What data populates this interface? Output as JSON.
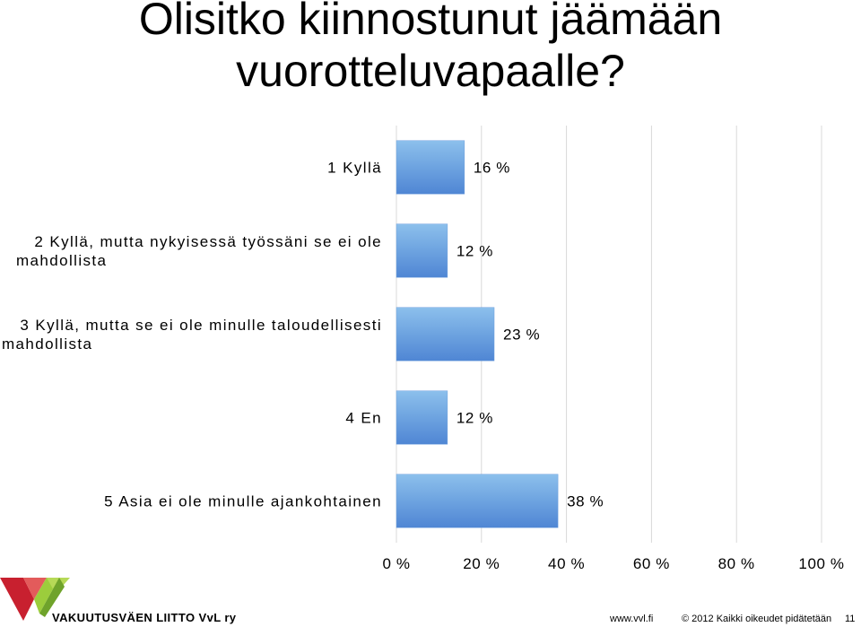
{
  "slide": {
    "title": "Olisitko kiinnostunut jäämään vuorotteluvapaalle?",
    "brand": "VAKUUTUSVÄEN LIITTO VvL ry",
    "footer_url": "www.vvl.fi",
    "footer_copyright": "© 2012 Kaikki oikeudet pidätetään",
    "page_number": "11"
  },
  "chart_data": {
    "type": "bar",
    "orientation": "horizontal",
    "categories": [
      [
        "1 Kyllä"
      ],
      [
        "2 Kyllä, mutta nykyisessä työssäni se ei ole",
        "mahdollista"
      ],
      [
        "3 Kyllä, mutta se ei ole minulle taloudellisesti",
        "mahdollista"
      ],
      [
        "4 En"
      ],
      [
        "5 Asia ei ole minulle ajankohtainen"
      ]
    ],
    "values": [
      16,
      12,
      23,
      12,
      38
    ],
    "value_labels": [
      "16 %",
      "12 %",
      "23 %",
      "12 %",
      "38 %"
    ],
    "xlim": [
      0,
      100
    ],
    "x_ticks": [
      "0 %",
      "20 %",
      "40 %",
      "60 %",
      "80 %",
      "100 %"
    ],
    "grid": true,
    "bar_color_top": "#8cc0ec",
    "bar_color_bottom": "#4f86d4",
    "grid_color": "#d9d9d9"
  }
}
